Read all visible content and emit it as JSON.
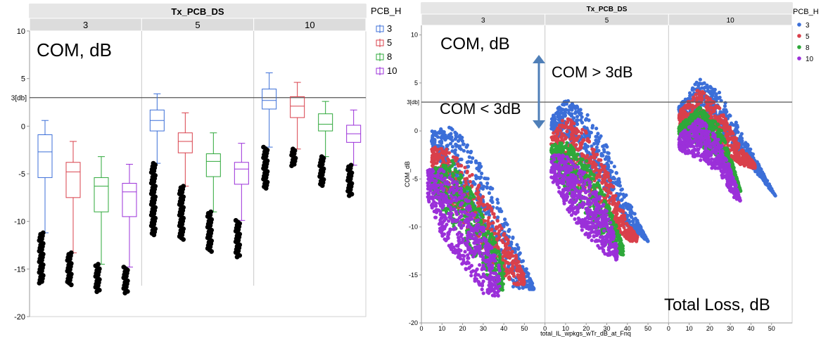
{
  "colors": {
    "header_bg": "#e6e6e6",
    "group_bg": "#dcdcdc",
    "divider": "#c8c8c8",
    "refline": "#555555",
    "outlier": "#000000",
    "series": {
      "3": "#3c6fd8",
      "5": "#d9404b",
      "8": "#2ea83a",
      "10": "#9b30d9"
    }
  },
  "chart_data": [
    {
      "type": "box",
      "header": "Tx_PCB_DS",
      "groups": [
        "3",
        "5",
        "10"
      ],
      "annotation": "COM, dB",
      "ref_line": {
        "value": 3,
        "label": "3[db]"
      },
      "ylim": [
        -20,
        10
      ],
      "yticks": [
        10,
        5,
        0,
        -5,
        -10,
        -15,
        -20
      ],
      "legend": {
        "title": "PCB_H",
        "position": "right",
        "items": [
          "3",
          "5",
          "8",
          "10"
        ]
      },
      "boxes": [
        {
          "group": "3",
          "series": "3",
          "min": -11.2,
          "q1": -5.4,
          "median": -2.7,
          "q3": -0.9,
          "max": 0.6,
          "outliers": [
            -11.2,
            -16.5
          ]
        },
        {
          "group": "3",
          "series": "5",
          "min": -13.3,
          "q1": -7.5,
          "median": -4.8,
          "q3": -3.8,
          "max": -1.6,
          "outliers": [
            -13.3,
            -16.8
          ]
        },
        {
          "group": "3",
          "series": "8",
          "min": -14.5,
          "q1": -9.0,
          "median": -6.3,
          "q3": -5.4,
          "max": -3.2,
          "outliers": [
            -14.5,
            -17.5
          ]
        },
        {
          "group": "3",
          "series": "10",
          "min": -14.8,
          "q1": -9.5,
          "median": -6.9,
          "q3": -6.0,
          "max": -4.0,
          "outliers": [
            -14.8,
            -17.6
          ]
        },
        {
          "group": "5",
          "series": "3",
          "min": -3.9,
          "q1": -0.5,
          "median": 0.6,
          "q3": 1.7,
          "max": 3.4,
          "outliers": [
            -3.9,
            -11.5
          ]
        },
        {
          "group": "5",
          "series": "5",
          "min": -6.3,
          "q1": -2.8,
          "median": -1.6,
          "q3": -0.7,
          "max": 1.4,
          "outliers": [
            -6.3,
            -12.0
          ]
        },
        {
          "group": "5",
          "series": "8",
          "min": -9.0,
          "q1": -5.3,
          "median": -3.7,
          "q3": -2.9,
          "max": -0.7,
          "outliers": [
            -9.0,
            -13.2
          ]
        },
        {
          "group": "5",
          "series": "10",
          "min": -9.9,
          "q1": -6.1,
          "median": -4.5,
          "q3": -3.8,
          "max": -1.8,
          "outliers": [
            -9.9,
            -13.8
          ]
        },
        {
          "group": "10",
          "series": "3",
          "min": -2.2,
          "q1": 1.8,
          "median": 2.7,
          "q3": 3.9,
          "max": 5.6,
          "outliers": [
            -2.2,
            -6.6
          ]
        },
        {
          "group": "10",
          "series": "5",
          "min": -2.4,
          "q1": 0.9,
          "median": 2.1,
          "q3": 3.1,
          "max": 4.6,
          "outliers": [
            -2.4,
            -4.2
          ]
        },
        {
          "group": "10",
          "series": "8",
          "min": -3.2,
          "q1": -0.5,
          "median": 0.2,
          "q3": 1.3,
          "max": 2.6,
          "outliers": [
            -3.2,
            -6.3
          ]
        },
        {
          "group": "10",
          "series": "10",
          "min": -4.1,
          "q1": -1.7,
          "median": -0.8,
          "q3": 0.1,
          "max": 1.7,
          "outliers": [
            -4.1,
            -7.4
          ]
        }
      ]
    },
    {
      "type": "scatter",
      "header": "Tx_PCB_DS",
      "groups": [
        "3",
        "5",
        "10"
      ],
      "ylabel": "COM_dB",
      "xlabel": "total_IL_wpkgs_wTr_dB_at_Fnq",
      "annotations": [
        "COM, dB",
        "COM > 3dB",
        "COM < 3dB",
        "Total Loss, dB"
      ],
      "ref_line": {
        "value": 3,
        "label": "3[db]"
      },
      "xlim": [
        0,
        60
      ],
      "ylim": [
        -20,
        11
      ],
      "xticks": [
        0,
        10,
        20,
        30,
        40,
        50
      ],
      "yticks": [
        10,
        5,
        0,
        -5,
        -10,
        -15,
        -20
      ],
      "legend": {
        "title": "PCB_H",
        "position": "right",
        "items": [
          "3",
          "5",
          "8",
          "10"
        ]
      },
      "clouds": [
        {
          "group": "3",
          "series": "3",
          "top": [
            [
              5,
              0
            ],
            [
              15,
              0.5
            ],
            [
              25,
              -2
            ],
            [
              35,
              -6
            ],
            [
              45,
              -11
            ],
            [
              55,
              -16.5
            ]
          ],
          "bottom": [
            [
              5,
              -2
            ],
            [
              15,
              -5
            ],
            [
              25,
              -9
            ],
            [
              35,
              -13
            ],
            [
              45,
              -16.5
            ],
            [
              55,
              -16.5
            ]
          ]
        },
        {
          "group": "3",
          "series": "5",
          "top": [
            [
              5,
              -1.5
            ],
            [
              15,
              -2
            ],
            [
              25,
              -4.5
            ],
            [
              35,
              -8.5
            ],
            [
              45,
              -12.5
            ],
            [
              50,
              -15
            ]
          ],
          "bottom": [
            [
              5,
              -4
            ],
            [
              15,
              -8
            ],
            [
              25,
              -11
            ],
            [
              35,
              -14
            ],
            [
              45,
              -16
            ],
            [
              50,
              -16
            ]
          ]
        },
        {
          "group": "3",
          "series": "8",
          "top": [
            [
              5,
              -4
            ],
            [
              15,
              -3
            ],
            [
              25,
              -6.5
            ],
            [
              35,
              -11
            ],
            [
              40,
              -14
            ]
          ],
          "bottom": [
            [
              5,
              -6
            ],
            [
              15,
              -10
            ],
            [
              25,
              -13
            ],
            [
              35,
              -16
            ],
            [
              40,
              -17
            ]
          ]
        },
        {
          "group": "3",
          "series": "10",
          "top": [
            [
              3,
              -4
            ],
            [
              10,
              -4
            ],
            [
              20,
              -6
            ],
            [
              30,
              -10
            ],
            [
              38,
              -14
            ]
          ],
          "bottom": [
            [
              3,
              -7
            ],
            [
              10,
              -11
            ],
            [
              20,
              -14
            ],
            [
              30,
              -17
            ],
            [
              38,
              -17.5
            ]
          ]
        },
        {
          "group": "5",
          "series": "3",
          "top": [
            [
              3,
              1.5
            ],
            [
              10,
              3.3
            ],
            [
              20,
              2
            ],
            [
              30,
              -1.5
            ],
            [
              40,
              -7
            ],
            [
              50,
              -11.5
            ]
          ],
          "bottom": [
            [
              3,
              0
            ],
            [
              10,
              -1
            ],
            [
              20,
              -3.5
            ],
            [
              30,
              -6.5
            ],
            [
              40,
              -10
            ],
            [
              50,
              -11.5
            ]
          ]
        },
        {
          "group": "5",
          "series": "5",
          "top": [
            [
              3,
              -0.5
            ],
            [
              10,
              1.5
            ],
            [
              20,
              0
            ],
            [
              30,
              -4
            ],
            [
              40,
              -9.5
            ],
            [
              45,
              -11
            ]
          ],
          "bottom": [
            [
              3,
              -2
            ],
            [
              10,
              -4
            ],
            [
              20,
              -6.5
            ],
            [
              30,
              -9
            ],
            [
              40,
              -11.5
            ],
            [
              45,
              -11.5
            ]
          ]
        },
        {
          "group": "5",
          "series": "8",
          "top": [
            [
              3,
              -1.5
            ],
            [
              10,
              -1
            ],
            [
              20,
              -3
            ],
            [
              30,
              -7
            ],
            [
              38,
              -12
            ]
          ],
          "bottom": [
            [
              3,
              -3.5
            ],
            [
              10,
              -6
            ],
            [
              20,
              -9
            ],
            [
              30,
              -12
            ],
            [
              38,
              -13
            ]
          ]
        },
        {
          "group": "5",
          "series": "10",
          "top": [
            [
              3,
              -2.5
            ],
            [
              10,
              -2.5
            ],
            [
              20,
              -4.5
            ],
            [
              30,
              -8
            ],
            [
              35,
              -12
            ]
          ],
          "bottom": [
            [
              3,
              -5
            ],
            [
              10,
              -8
            ],
            [
              20,
              -11
            ],
            [
              30,
              -13
            ],
            [
              35,
              -13.5
            ]
          ]
        },
        {
          "group": "10",
          "series": "3",
          "top": [
            [
              5,
              2.5
            ],
            [
              15,
              5.5
            ],
            [
              25,
              4
            ],
            [
              35,
              0
            ],
            [
              45,
              -4
            ],
            [
              52,
              -6.8
            ]
          ],
          "bottom": [
            [
              5,
              1.5
            ],
            [
              15,
              1
            ],
            [
              25,
              -0.5
            ],
            [
              35,
              -2.5
            ],
            [
              45,
              -5
            ],
            [
              52,
              -6.8
            ]
          ]
        },
        {
          "group": "10",
          "series": "5",
          "top": [
            [
              5,
              2
            ],
            [
              15,
              4.5
            ],
            [
              25,
              2.5
            ],
            [
              35,
              -1.5
            ],
            [
              42,
              -3.5
            ]
          ],
          "bottom": [
            [
              5,
              0.5
            ],
            [
              15,
              -0.5
            ],
            [
              25,
              -2
            ],
            [
              35,
              -3.5
            ],
            [
              42,
              -4
            ]
          ]
        },
        {
          "group": "10",
          "series": "8",
          "top": [
            [
              5,
              0.5
            ],
            [
              15,
              2.5
            ],
            [
              25,
              0.5
            ],
            [
              32,
              -4
            ],
            [
              35,
              -6.3
            ]
          ],
          "bottom": [
            [
              5,
              -0.5
            ],
            [
              15,
              -1.5
            ],
            [
              25,
              -3
            ],
            [
              32,
              -5
            ],
            [
              35,
              -6.3
            ]
          ]
        },
        {
          "group": "10",
          "series": "10",
          "top": [
            [
              5,
              -0.5
            ],
            [
              15,
              1.5
            ],
            [
              25,
              -1
            ],
            [
              32,
              -5
            ],
            [
              35,
              -7.3
            ]
          ],
          "bottom": [
            [
              5,
              -2
            ],
            [
              15,
              -3
            ],
            [
              25,
              -4.5
            ],
            [
              32,
              -7
            ],
            [
              35,
              -7.3
            ]
          ]
        }
      ]
    }
  ]
}
